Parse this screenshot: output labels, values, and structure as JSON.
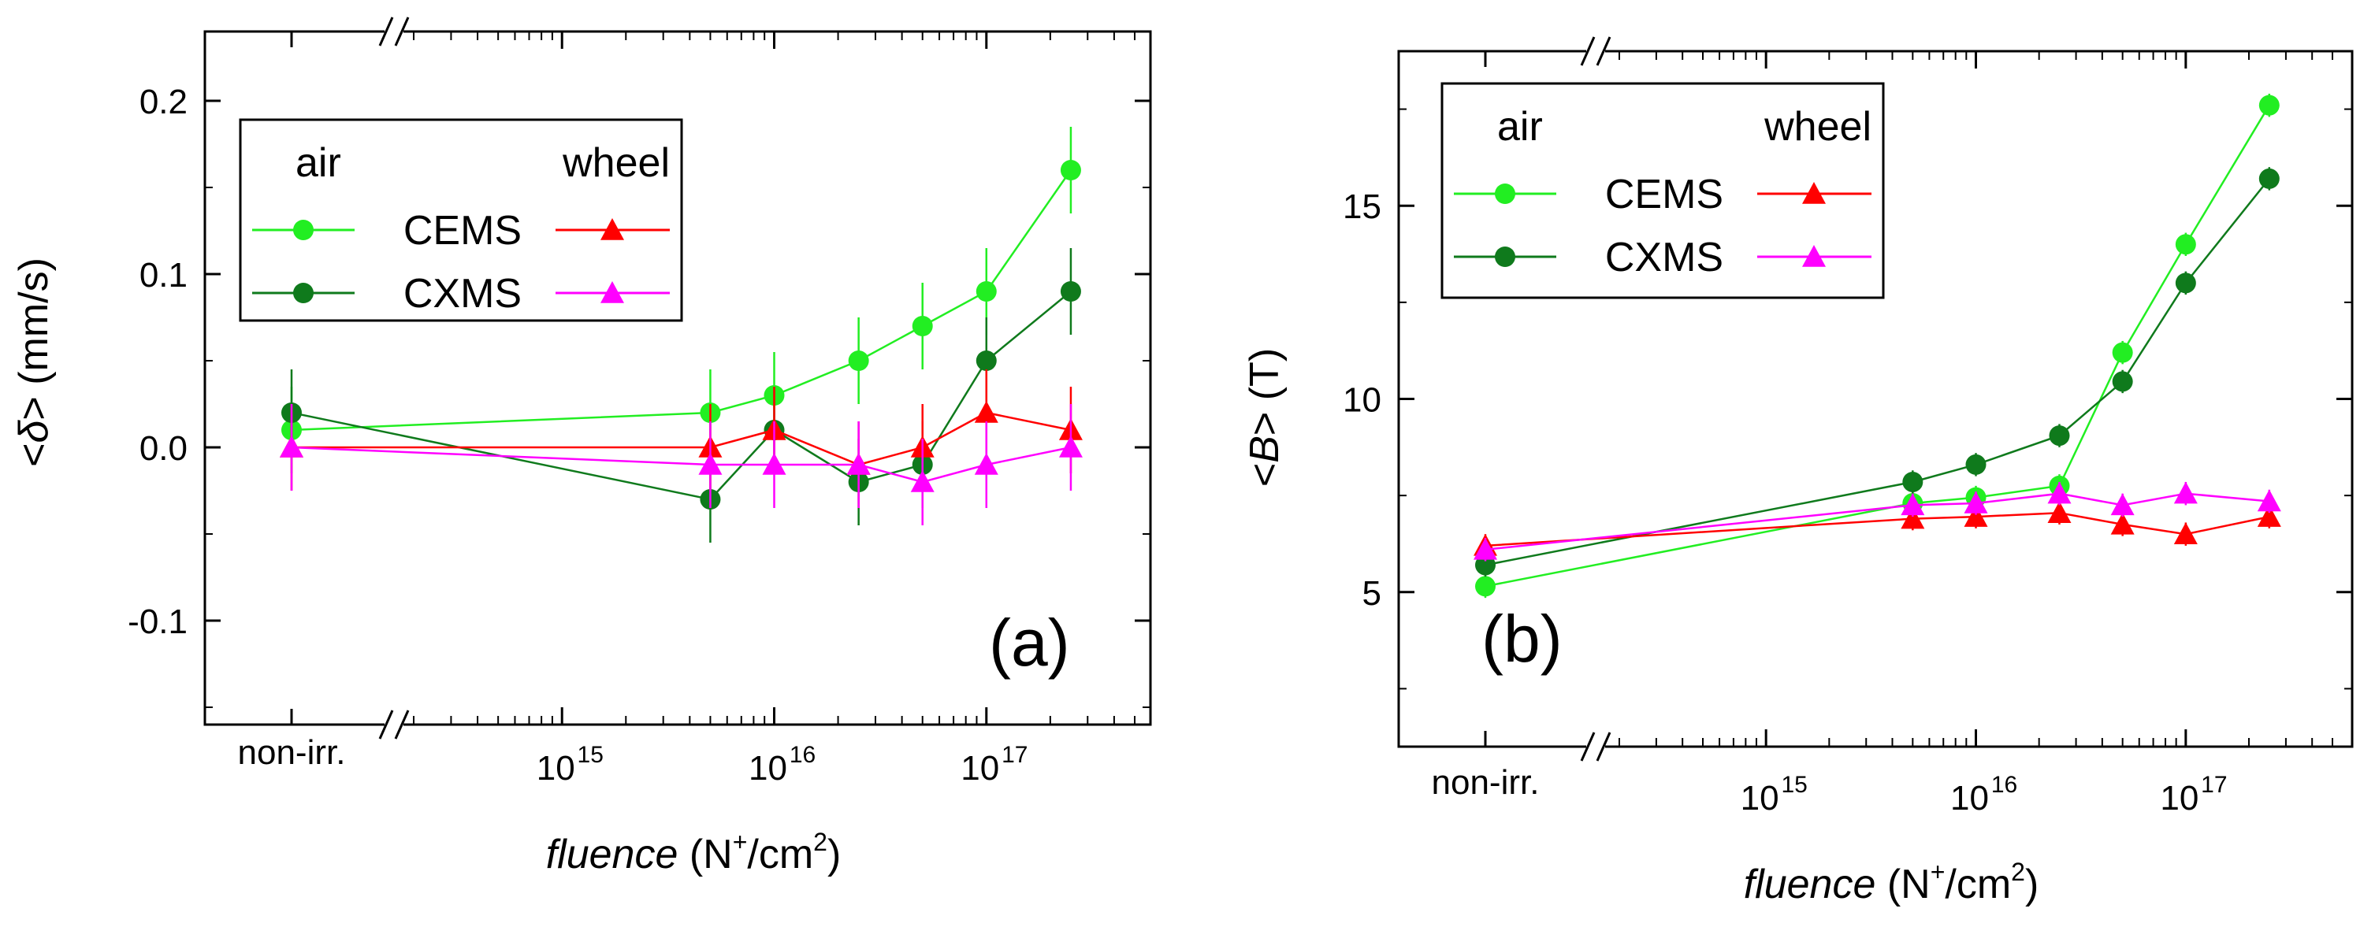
{
  "chart_data": [
    {
      "type": "scatter",
      "panel_label": "(a)",
      "ylabel_parts": [
        "<",
        "δ",
        ">  (mm/s)"
      ],
      "xlabel_parts": [
        "fluence",
        " (N",
        "+",
        "/cm",
        "2",
        ")"
      ],
      "x_categorical_label": "non-irr.",
      "x_ticks": [
        {
          "base": "10",
          "exp": "15",
          "value": 1000000000000000.0
        },
        {
          "base": "10",
          "exp": "16",
          "value": 1e+16
        },
        {
          "base": "10",
          "exp": "17",
          "value": 1e+17
        }
      ],
      "xlim_log": [
        200000000000000.0,
        5e+17
      ],
      "ylim": [
        -0.16,
        0.24
      ],
      "y_ticks": [
        {
          "label": "-0.1",
          "value": -0.1
        },
        {
          "label": "0.0",
          "value": 0.0
        },
        {
          "label": "0.1",
          "value": 0.1
        },
        {
          "label": "0.2",
          "value": 0.2
        }
      ],
      "x": [
        5000000000000000.0,
        1e+16,
        2.5e+16,
        5e+16,
        1e+17,
        2.5e+17
      ],
      "series": [
        {
          "name": "CEMS",
          "group": "air",
          "marker": "circle",
          "color": "#22ee22",
          "non_irr": 0.01,
          "values": [
            0.02,
            0.03,
            0.05,
            0.07,
            0.09,
            0.16
          ],
          "error": 0.025
        },
        {
          "name": "CXMS",
          "group": "air",
          "marker": "circle",
          "color": "#0f7a1c",
          "non_irr": 0.02,
          "values": [
            -0.03,
            0.01,
            -0.02,
            -0.01,
            0.05,
            0.09
          ],
          "error": 0.025
        },
        {
          "name": "CEMS",
          "group": "wheel",
          "marker": "triangle",
          "color": "#ff0000",
          "non_irr": 0.0,
          "values": [
            0.0,
            0.01,
            -0.01,
            0.0,
            0.02,
            0.01
          ],
          "error": 0.025
        },
        {
          "name": "CXMS",
          "group": "wheel",
          "marker": "triangle",
          "color": "#ff00ff",
          "non_irr": 0.0,
          "values": [
            -0.01,
            -0.01,
            -0.01,
            -0.02,
            -0.01,
            0.0
          ],
          "error": 0.025
        }
      ],
      "legend": {
        "left_header": "air",
        "right_header": "wheel",
        "rows": [
          "CEMS",
          "CXMS"
        ],
        "position": "top-left"
      }
    },
    {
      "type": "scatter",
      "panel_label": "(b)",
      "ylabel_parts": [
        "<",
        "B",
        ">  (T)"
      ],
      "xlabel_parts": [
        "fluence",
        " (N",
        "+",
        "/cm",
        "2",
        ")"
      ],
      "x_categorical_label": "non-irr.",
      "x_ticks": [
        {
          "base": "10",
          "exp": "15",
          "value": 1000000000000000.0
        },
        {
          "base": "10",
          "exp": "16",
          "value": 1e+16
        },
        {
          "base": "10",
          "exp": "17",
          "value": 1e+17
        }
      ],
      "xlim_log": [
        200000000000000.0,
        5e+17
      ],
      "ylim": [
        1.0,
        19.0
      ],
      "y_ticks": [
        {
          "label": "5",
          "value": 5
        },
        {
          "label": "10",
          "value": 10
        },
        {
          "label": "15",
          "value": 15
        }
      ],
      "x": [
        5000000000000000.0,
        1e+16,
        2.5e+16,
        5e+16,
        1e+17,
        2.5e+17
      ],
      "series": [
        {
          "name": "CEMS",
          "group": "air",
          "marker": "circle",
          "color": "#22ee22",
          "non_irr": 5.15,
          "values": [
            7.3,
            7.45,
            7.75,
            11.2,
            14.0,
            17.6
          ],
          "error": 0.3
        },
        {
          "name": "CXMS",
          "group": "air",
          "marker": "circle",
          "color": "#0f7a1c",
          "non_irr": 5.7,
          "values": [
            7.85,
            8.3,
            9.05,
            10.45,
            13.0,
            15.7
          ],
          "error": 0.3
        },
        {
          "name": "CEMS",
          "group": "wheel",
          "marker": "triangle",
          "color": "#ff0000",
          "non_irr": 6.2,
          "values": [
            6.9,
            6.95,
            7.05,
            6.75,
            6.5,
            6.95
          ],
          "error": 0.3
        },
        {
          "name": "CXMS",
          "group": "wheel",
          "marker": "triangle",
          "color": "#ff00ff",
          "non_irr": 6.1,
          "values": [
            7.25,
            7.3,
            7.55,
            7.25,
            7.55,
            7.35
          ],
          "error": 0.3
        }
      ],
      "legend": {
        "left_header": "air",
        "right_header": "wheel",
        "rows": [
          "CEMS",
          "CXMS"
        ],
        "position": "top-left"
      }
    }
  ]
}
